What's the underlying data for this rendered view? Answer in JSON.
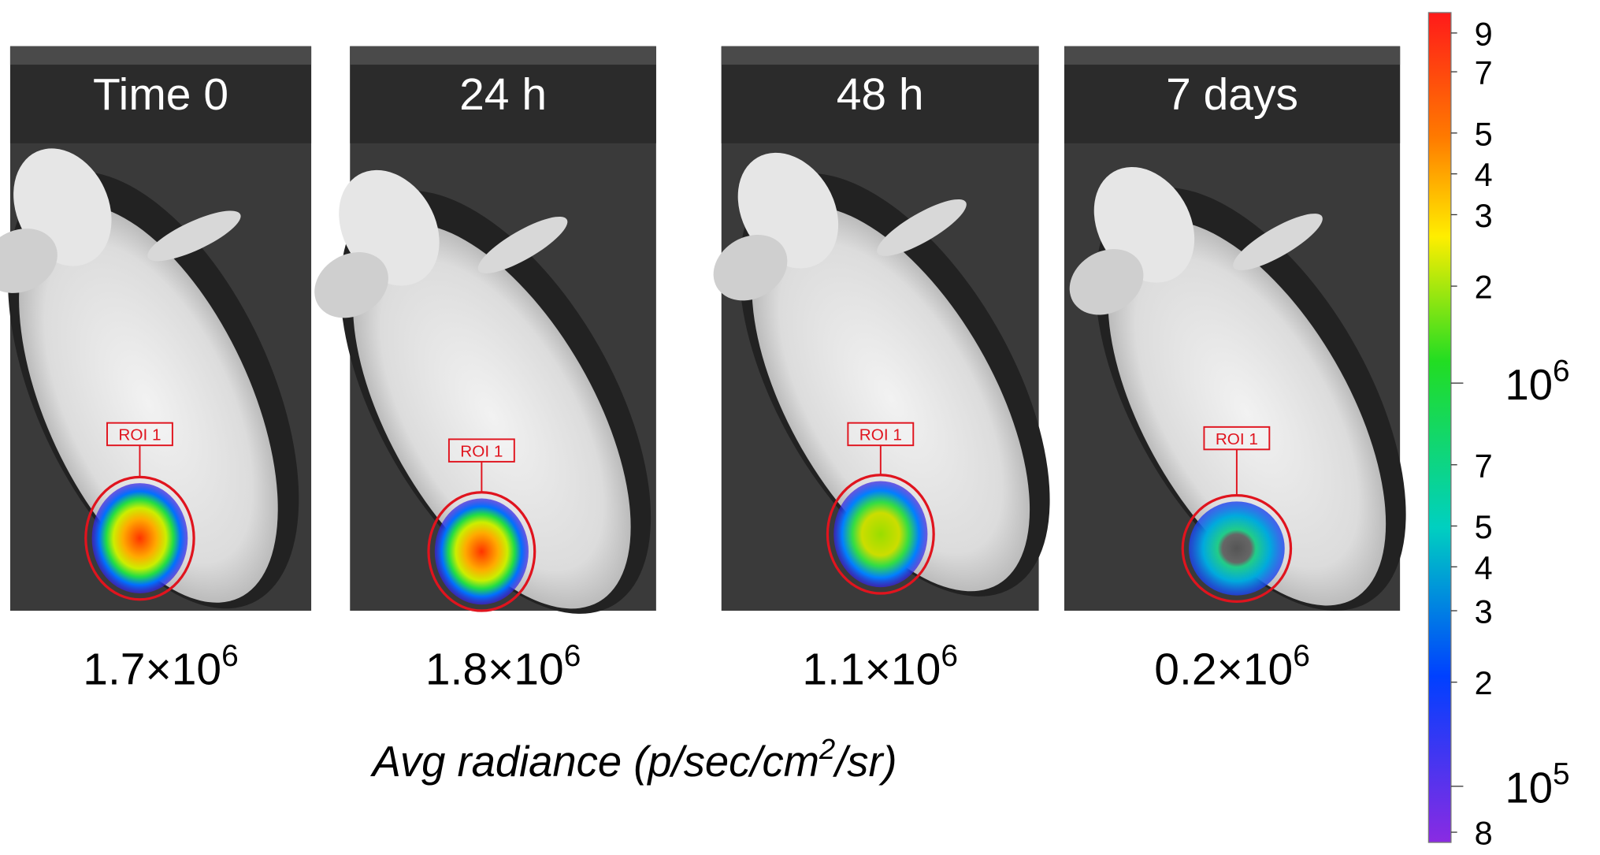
{
  "panels": [
    {
      "label": "Time 0",
      "roi": "ROI 1",
      "radiance": {
        "base": "1.7×10",
        "exponent": "6"
      }
    },
    {
      "label": "24 h",
      "roi": "ROI 1",
      "radiance": {
        "base": "1.8×10",
        "exponent": "6"
      }
    },
    {
      "label": "48 h",
      "roi": "ROI 1",
      "radiance": {
        "base": "1.1×10",
        "exponent": "6"
      }
    },
    {
      "label": "7 days",
      "roi": "ROI 1",
      "radiance": {
        "base": "0.2×10",
        "exponent": "6"
      }
    }
  ],
  "axis_label": {
    "before": "Avg radiance (p/sec/cm",
    "sup": "2",
    "after": "/sr)"
  },
  "colorbar": {
    "ticks": [
      {
        "text": "9"
      },
      {
        "text": "7"
      },
      {
        "text": "5"
      },
      {
        "text": "4"
      },
      {
        "text": "3"
      },
      {
        "text": "2"
      },
      {
        "text": "10",
        "sup": "6"
      },
      {
        "text": "7"
      },
      {
        "text": "5"
      },
      {
        "text": "4"
      },
      {
        "text": "3"
      },
      {
        "text": "2"
      },
      {
        "text": "10",
        "sup": "5"
      },
      {
        "text": "8"
      }
    ]
  }
}
